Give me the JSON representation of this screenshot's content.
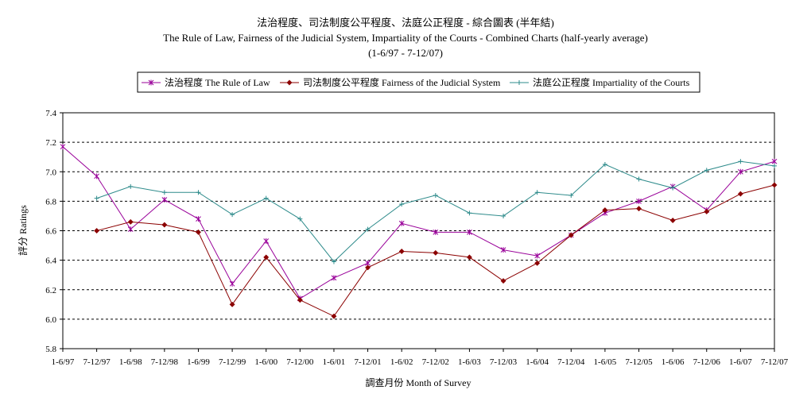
{
  "chart_data": {
    "type": "line",
    "title": "法治程度、司法制度公平程度、法庭公正程度 - 綜合圖表 (半年結)",
    "subtitle": "The Rule of Law, Fairness of the Judicial System, Impartiality of the Courts - Combined Charts (half-yearly average)",
    "period": "(1-6/97  -  7-12/07)",
    "xlabel": "調查月份 Month of Survey",
    "ylabel": "評分 Ratings",
    "ylim": [
      5.8,
      7.4
    ],
    "yticks": [
      "5.8",
      "6.0",
      "6.2",
      "6.4",
      "6.6",
      "6.8",
      "7.0",
      "7.2",
      "7.4"
    ],
    "grid": "horizontal dashed",
    "legend_position": "top",
    "categories": [
      "1-6/97",
      "7-12/97",
      "1-6/98",
      "7-12/98",
      "1-6/99",
      "7-12/99",
      "1-6/00",
      "7-12/00",
      "1-6/01",
      "7-12/01",
      "1-6/02",
      "7-12/02",
      "1-6/03",
      "7-12/03",
      "1-6/04",
      "7-12/04",
      "1-6/05",
      "7-12/05",
      "1-6/06",
      "7-12/06",
      "1-6/07",
      "7-12/07"
    ],
    "series": [
      {
        "name": "法治程度 The Rule of Law",
        "color": "#990099",
        "marker": "star",
        "values": [
          7.17,
          6.97,
          6.61,
          6.81,
          6.68,
          6.24,
          6.53,
          6.14,
          6.28,
          6.38,
          6.65,
          6.59,
          6.59,
          6.47,
          6.43,
          6.57,
          6.72,
          6.8,
          6.9,
          6.74,
          7.0,
          7.07
        ]
      },
      {
        "name": "司法制度公平程度 Fairness of the Judicial System",
        "color": "#8b0000",
        "marker": "diamond",
        "values": [
          null,
          6.6,
          6.66,
          6.64,
          6.59,
          6.1,
          6.42,
          6.13,
          6.02,
          6.35,
          6.46,
          6.45,
          6.42,
          6.26,
          6.38,
          6.57,
          6.74,
          6.75,
          6.67,
          6.73,
          6.85,
          6.91
        ]
      },
      {
        "name": "法庭公正程度 Impartiality of the Courts",
        "color": "#2e8b8b",
        "marker": "plus",
        "values": [
          null,
          6.82,
          6.9,
          6.86,
          6.86,
          6.71,
          6.82,
          6.68,
          6.39,
          6.61,
          6.78,
          6.84,
          6.72,
          6.7,
          6.86,
          6.84,
          7.05,
          6.95,
          6.89,
          7.01,
          7.07,
          7.04
        ]
      }
    ]
  }
}
